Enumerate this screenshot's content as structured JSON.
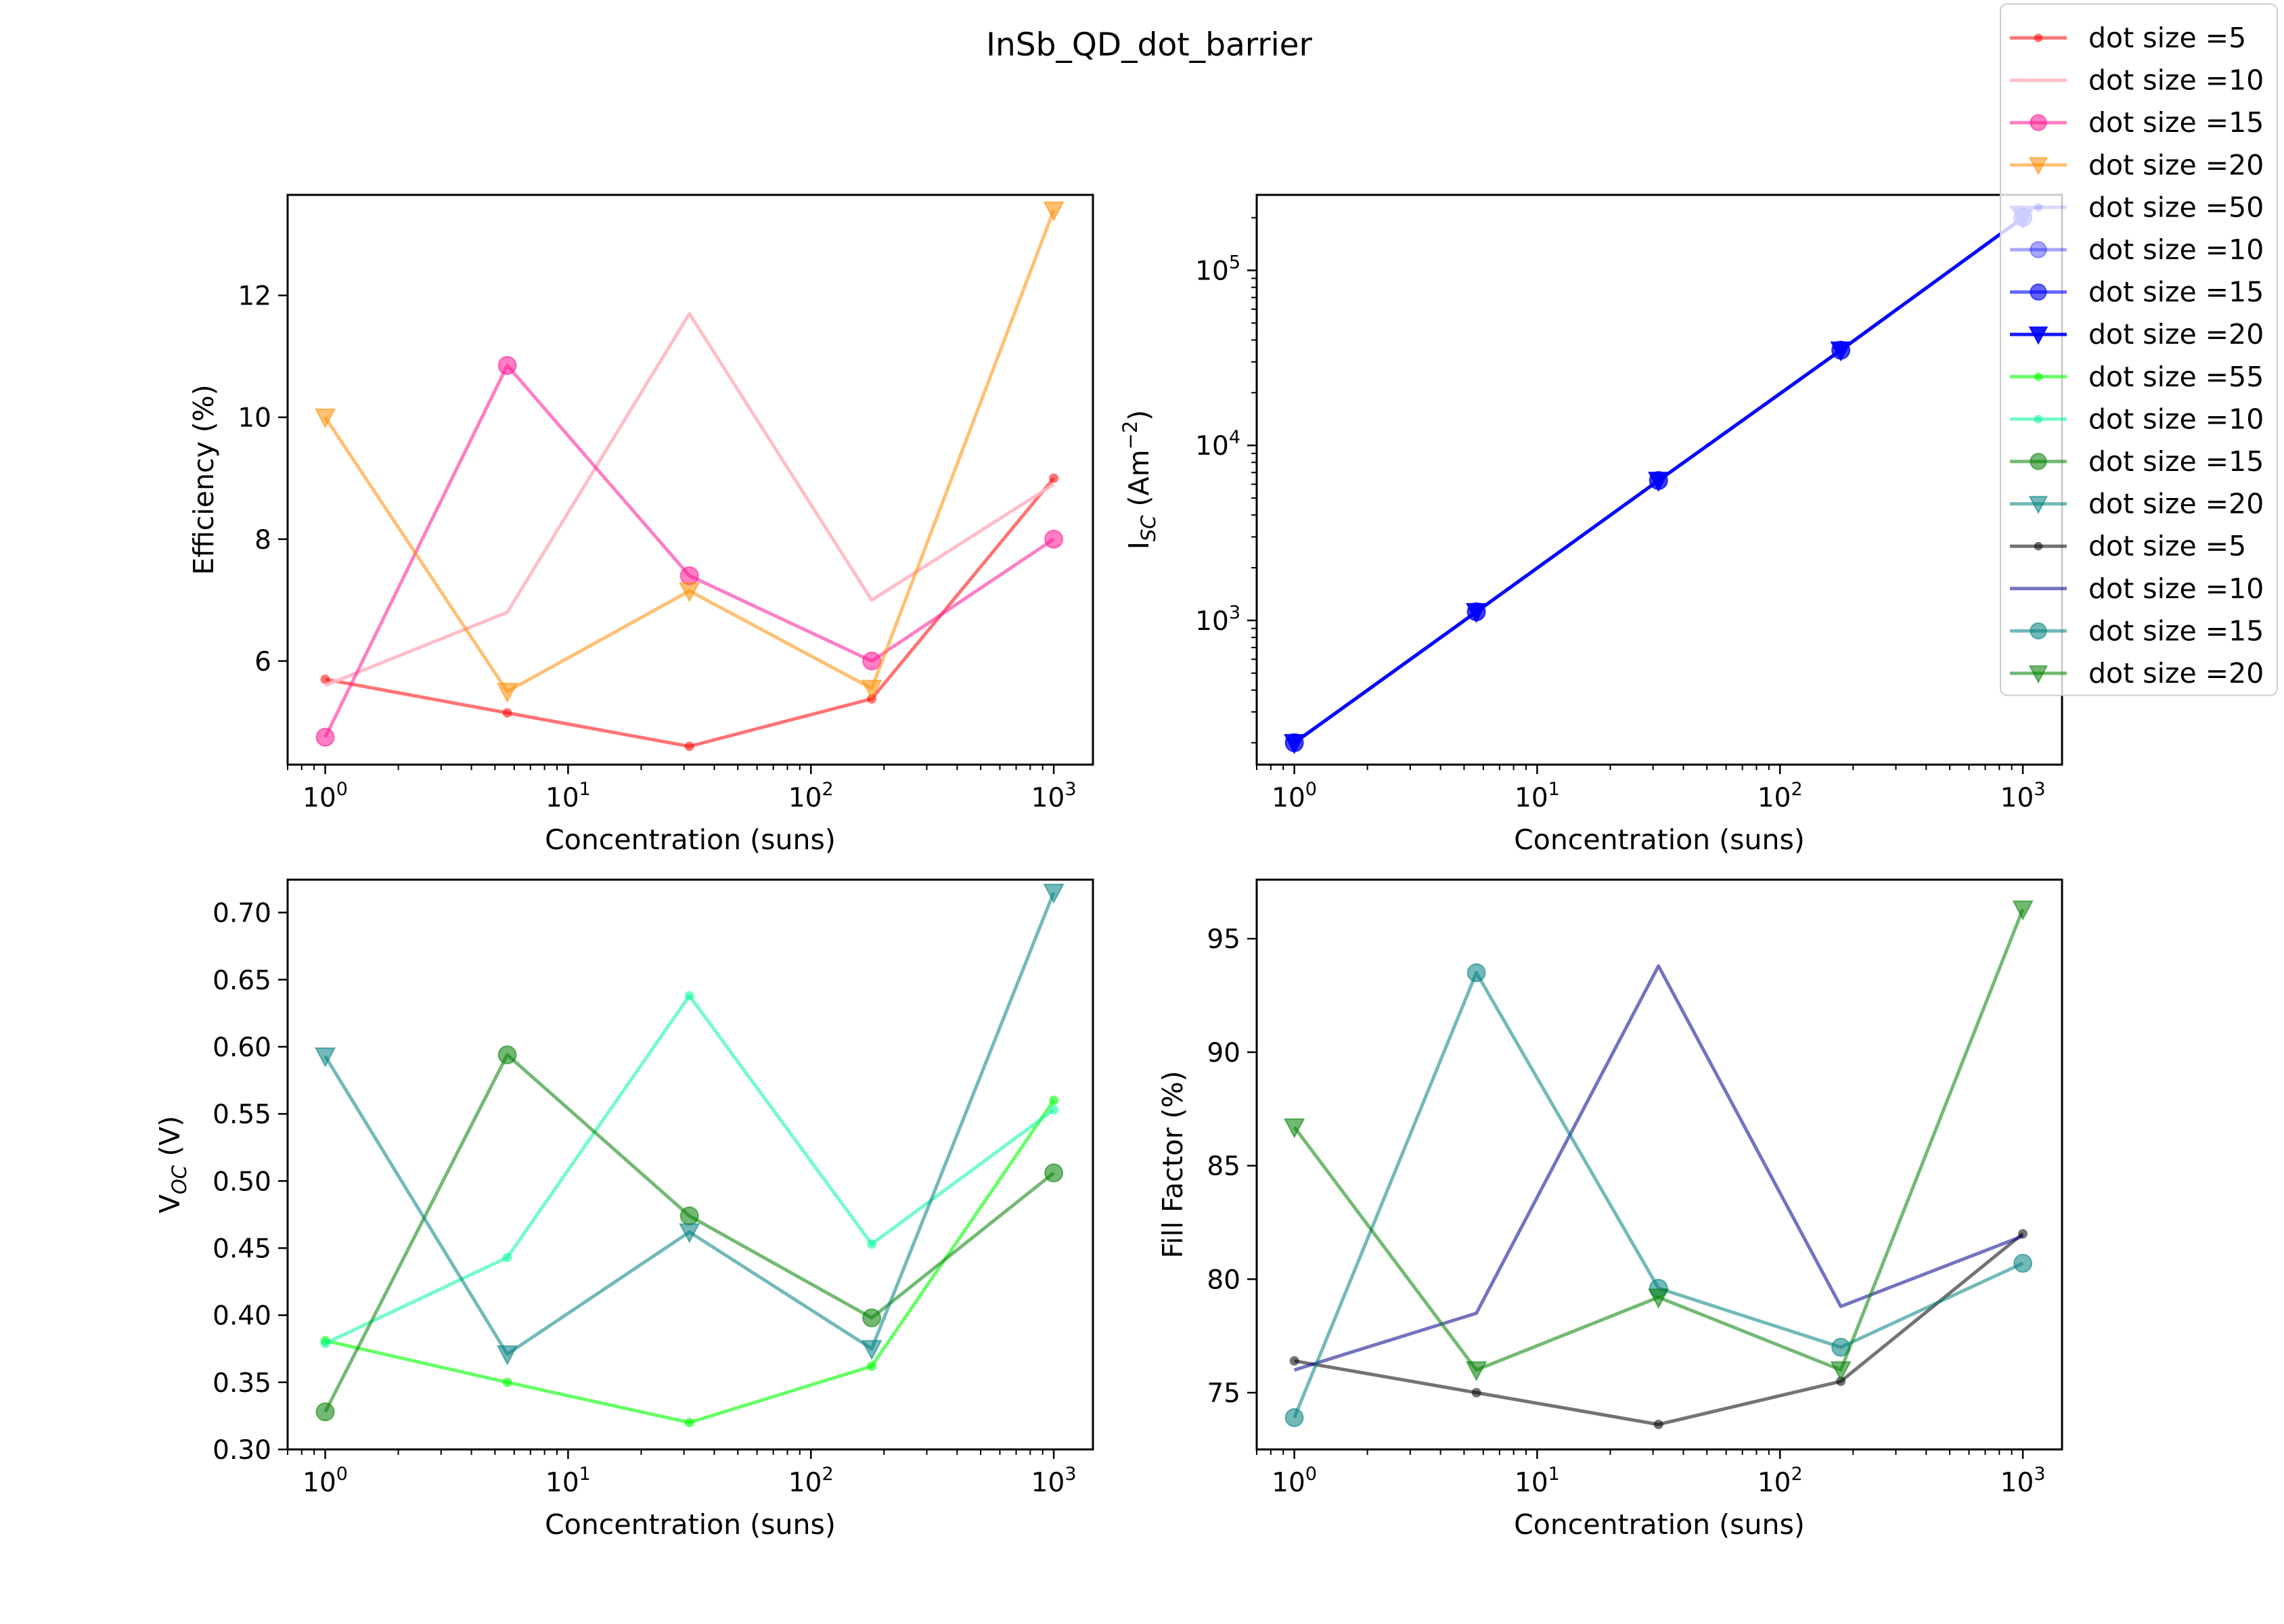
{
  "figure": {
    "title": "InSb_QD_dot_barrier"
  },
  "legend": {
    "placement": "top-right",
    "entries": [
      {
        "label": "dot size =5",
        "color": "#ff0000",
        "alpha": 0.55,
        "marker": "point"
      },
      {
        "label": "dot size =10",
        "color": "#ffb6c1",
        "alpha": 0.9,
        "marker": "none"
      },
      {
        "label": "dot size =15",
        "color": "#ff1493",
        "alpha": 0.55,
        "marker": "circle"
      },
      {
        "label": "dot size =20",
        "color": "#ff8c00",
        "alpha": 0.55,
        "marker": "triangle_down"
      },
      {
        "label": "dot size =50",
        "color": "#0000ff",
        "alpha": 0.15,
        "marker": "point"
      },
      {
        "label": "dot size =10",
        "color": "#0000ff",
        "alpha": 0.35,
        "marker": "circle"
      },
      {
        "label": "dot size =15",
        "color": "#0000ff",
        "alpha": 0.6,
        "marker": "circle"
      },
      {
        "label": "dot size =20",
        "color": "#0000ff",
        "alpha": 0.9,
        "marker": "triangle_down"
      },
      {
        "label": "dot size =55",
        "color": "#00ff00",
        "alpha": 0.6,
        "marker": "point"
      },
      {
        "label": "dot size =10",
        "color": "#00fa9a",
        "alpha": 0.55,
        "marker": "point"
      },
      {
        "label": "dot size =15",
        "color": "#008000",
        "alpha": 0.55,
        "marker": "circle"
      },
      {
        "label": "dot size =20",
        "color": "#008080",
        "alpha": 0.55,
        "marker": "triangle_down"
      },
      {
        "label": "dot size =5",
        "color": "#000000",
        "alpha": 0.55,
        "marker": "point"
      },
      {
        "label": "dot size =10",
        "color": "#00008b",
        "alpha": 0.55,
        "marker": "none"
      },
      {
        "label": "dot size =15",
        "color": "#008080",
        "alpha": 0.55,
        "marker": "circle"
      },
      {
        "label": "dot size =20",
        "color": "#008000",
        "alpha": 0.55,
        "marker": "triangle_down"
      }
    ]
  },
  "chart_data": [
    {
      "type": "line",
      "xlabel": "Concentration (suns)",
      "ylabel": "Efficiency (%)",
      "xscale": "log",
      "xlim": [
        0.7,
        1450
      ],
      "ylim": [
        4.3,
        13.65
      ],
      "xticks": [
        {
          "v": 1,
          "e": "0"
        },
        {
          "v": 10,
          "e": "1"
        },
        {
          "v": 100,
          "e": "2"
        },
        {
          "v": 1000,
          "e": "3"
        }
      ],
      "yticks": [
        6,
        8,
        10,
        12
      ],
      "x": [
        1,
        5.62,
        31.6,
        178,
        1000
      ],
      "series": [
        {
          "color": "#ff0000",
          "alpha": 0.55,
          "marker": "point",
          "values": [
            5.7,
            5.15,
            4.6,
            5.38,
            9.0
          ]
        },
        {
          "color": "#ffb6c1",
          "alpha": 0.9,
          "marker": "none",
          "values": [
            5.6,
            6.8,
            11.7,
            7.0,
            8.9
          ]
        },
        {
          "color": "#ff1493",
          "alpha": 0.55,
          "marker": "circle",
          "values": [
            4.75,
            10.85,
            7.4,
            6.0,
            8.0
          ]
        },
        {
          "color": "#ff8c00",
          "alpha": 0.55,
          "marker": "triangle_down",
          "values": [
            10.0,
            5.5,
            7.15,
            5.55,
            13.4
          ]
        }
      ]
    },
    {
      "type": "line",
      "xlabel": "Concentration (suns)",
      "ylabel": "I_SC (Am^-2)",
      "xscale": "log",
      "yscale": "log",
      "xlim": [
        0.7,
        1450
      ],
      "ylim": [
        150,
        270000
      ],
      "xticks": [
        {
          "v": 1,
          "e": "0"
        },
        {
          "v": 10,
          "e": "1"
        },
        {
          "v": 100,
          "e": "2"
        },
        {
          "v": 1000,
          "e": "3"
        }
      ],
      "yticks": [
        {
          "v": 1000,
          "e": "3"
        },
        {
          "v": 10000,
          "e": "4"
        },
        {
          "v": 100000,
          "e": "5"
        }
      ],
      "x": [
        1,
        5.62,
        31.6,
        178,
        1000
      ],
      "series": [
        {
          "color": "#0000ff",
          "alpha": 0.15,
          "marker": "point",
          "values": [
            200,
            1120,
            6300,
            35000,
            200000
          ]
        },
        {
          "color": "#0000ff",
          "alpha": 0.35,
          "marker": "circle",
          "values": [
            200,
            1120,
            6300,
            35000,
            200000
          ]
        },
        {
          "color": "#0000ff",
          "alpha": 0.6,
          "marker": "circle",
          "values": [
            200,
            1120,
            6300,
            35000,
            200000
          ]
        },
        {
          "color": "#0000ff",
          "alpha": 0.9,
          "marker": "triangle_down",
          "values": [
            200,
            1120,
            6300,
            35000,
            200000
          ]
        }
      ]
    },
    {
      "type": "line",
      "xlabel": "Concentration (suns)",
      "ylabel": "V_OC (V)",
      "xscale": "log",
      "xlim": [
        0.7,
        1450
      ],
      "ylim": [
        0.3,
        0.7245
      ],
      "xticks": [
        {
          "v": 1,
          "e": "0"
        },
        {
          "v": 10,
          "e": "1"
        },
        {
          "v": 100,
          "e": "2"
        },
        {
          "v": 1000,
          "e": "3"
        }
      ],
      "yticks": [
        0.3,
        0.35,
        0.4,
        0.45,
        0.5,
        0.55,
        0.6,
        0.65,
        0.7
      ],
      "x": [
        1,
        5.62,
        31.6,
        178,
        1000
      ],
      "series": [
        {
          "color": "#00ff00",
          "alpha": 0.6,
          "marker": "point",
          "values": [
            0.381,
            0.35,
            0.32,
            0.362,
            0.56
          ]
        },
        {
          "color": "#00fa9a",
          "alpha": 0.55,
          "marker": "point",
          "values": [
            0.379,
            0.443,
            0.638,
            0.453,
            0.553
          ]
        },
        {
          "color": "#008000",
          "alpha": 0.55,
          "marker": "circle",
          "values": [
            0.328,
            0.594,
            0.474,
            0.398,
            0.506
          ]
        },
        {
          "color": "#008080",
          "alpha": 0.55,
          "marker": "triangle_down",
          "values": [
            0.593,
            0.371,
            0.462,
            0.375,
            0.715
          ]
        }
      ]
    },
    {
      "type": "line",
      "xlabel": "Concentration (suns)",
      "ylabel": "Fill Factor (%)",
      "xscale": "log",
      "xlim": [
        0.7,
        1450
      ],
      "ylim": [
        72.5,
        97.6
      ],
      "xticks": [
        {
          "v": 1,
          "e": "0"
        },
        {
          "v": 10,
          "e": "1"
        },
        {
          "v": 100,
          "e": "2"
        },
        {
          "v": 1000,
          "e": "3"
        }
      ],
      "yticks": [
        75,
        80,
        85,
        90,
        95
      ],
      "x": [
        1,
        5.62,
        31.6,
        178,
        1000
      ],
      "series": [
        {
          "color": "#000000",
          "alpha": 0.55,
          "marker": "point",
          "values": [
            76.4,
            75.0,
            73.6,
            75.5,
            82.0
          ]
        },
        {
          "color": "#00008b",
          "alpha": 0.55,
          "marker": "none",
          "values": [
            76.0,
            78.5,
            93.8,
            78.8,
            81.9
          ]
        },
        {
          "color": "#008080",
          "alpha": 0.55,
          "marker": "circle",
          "values": [
            73.9,
            93.5,
            79.6,
            77.0,
            80.7
          ]
        },
        {
          "color": "#008000",
          "alpha": 0.55,
          "marker": "triangle_down",
          "values": [
            86.7,
            76.0,
            79.2,
            76.0,
            96.3
          ]
        }
      ]
    }
  ]
}
